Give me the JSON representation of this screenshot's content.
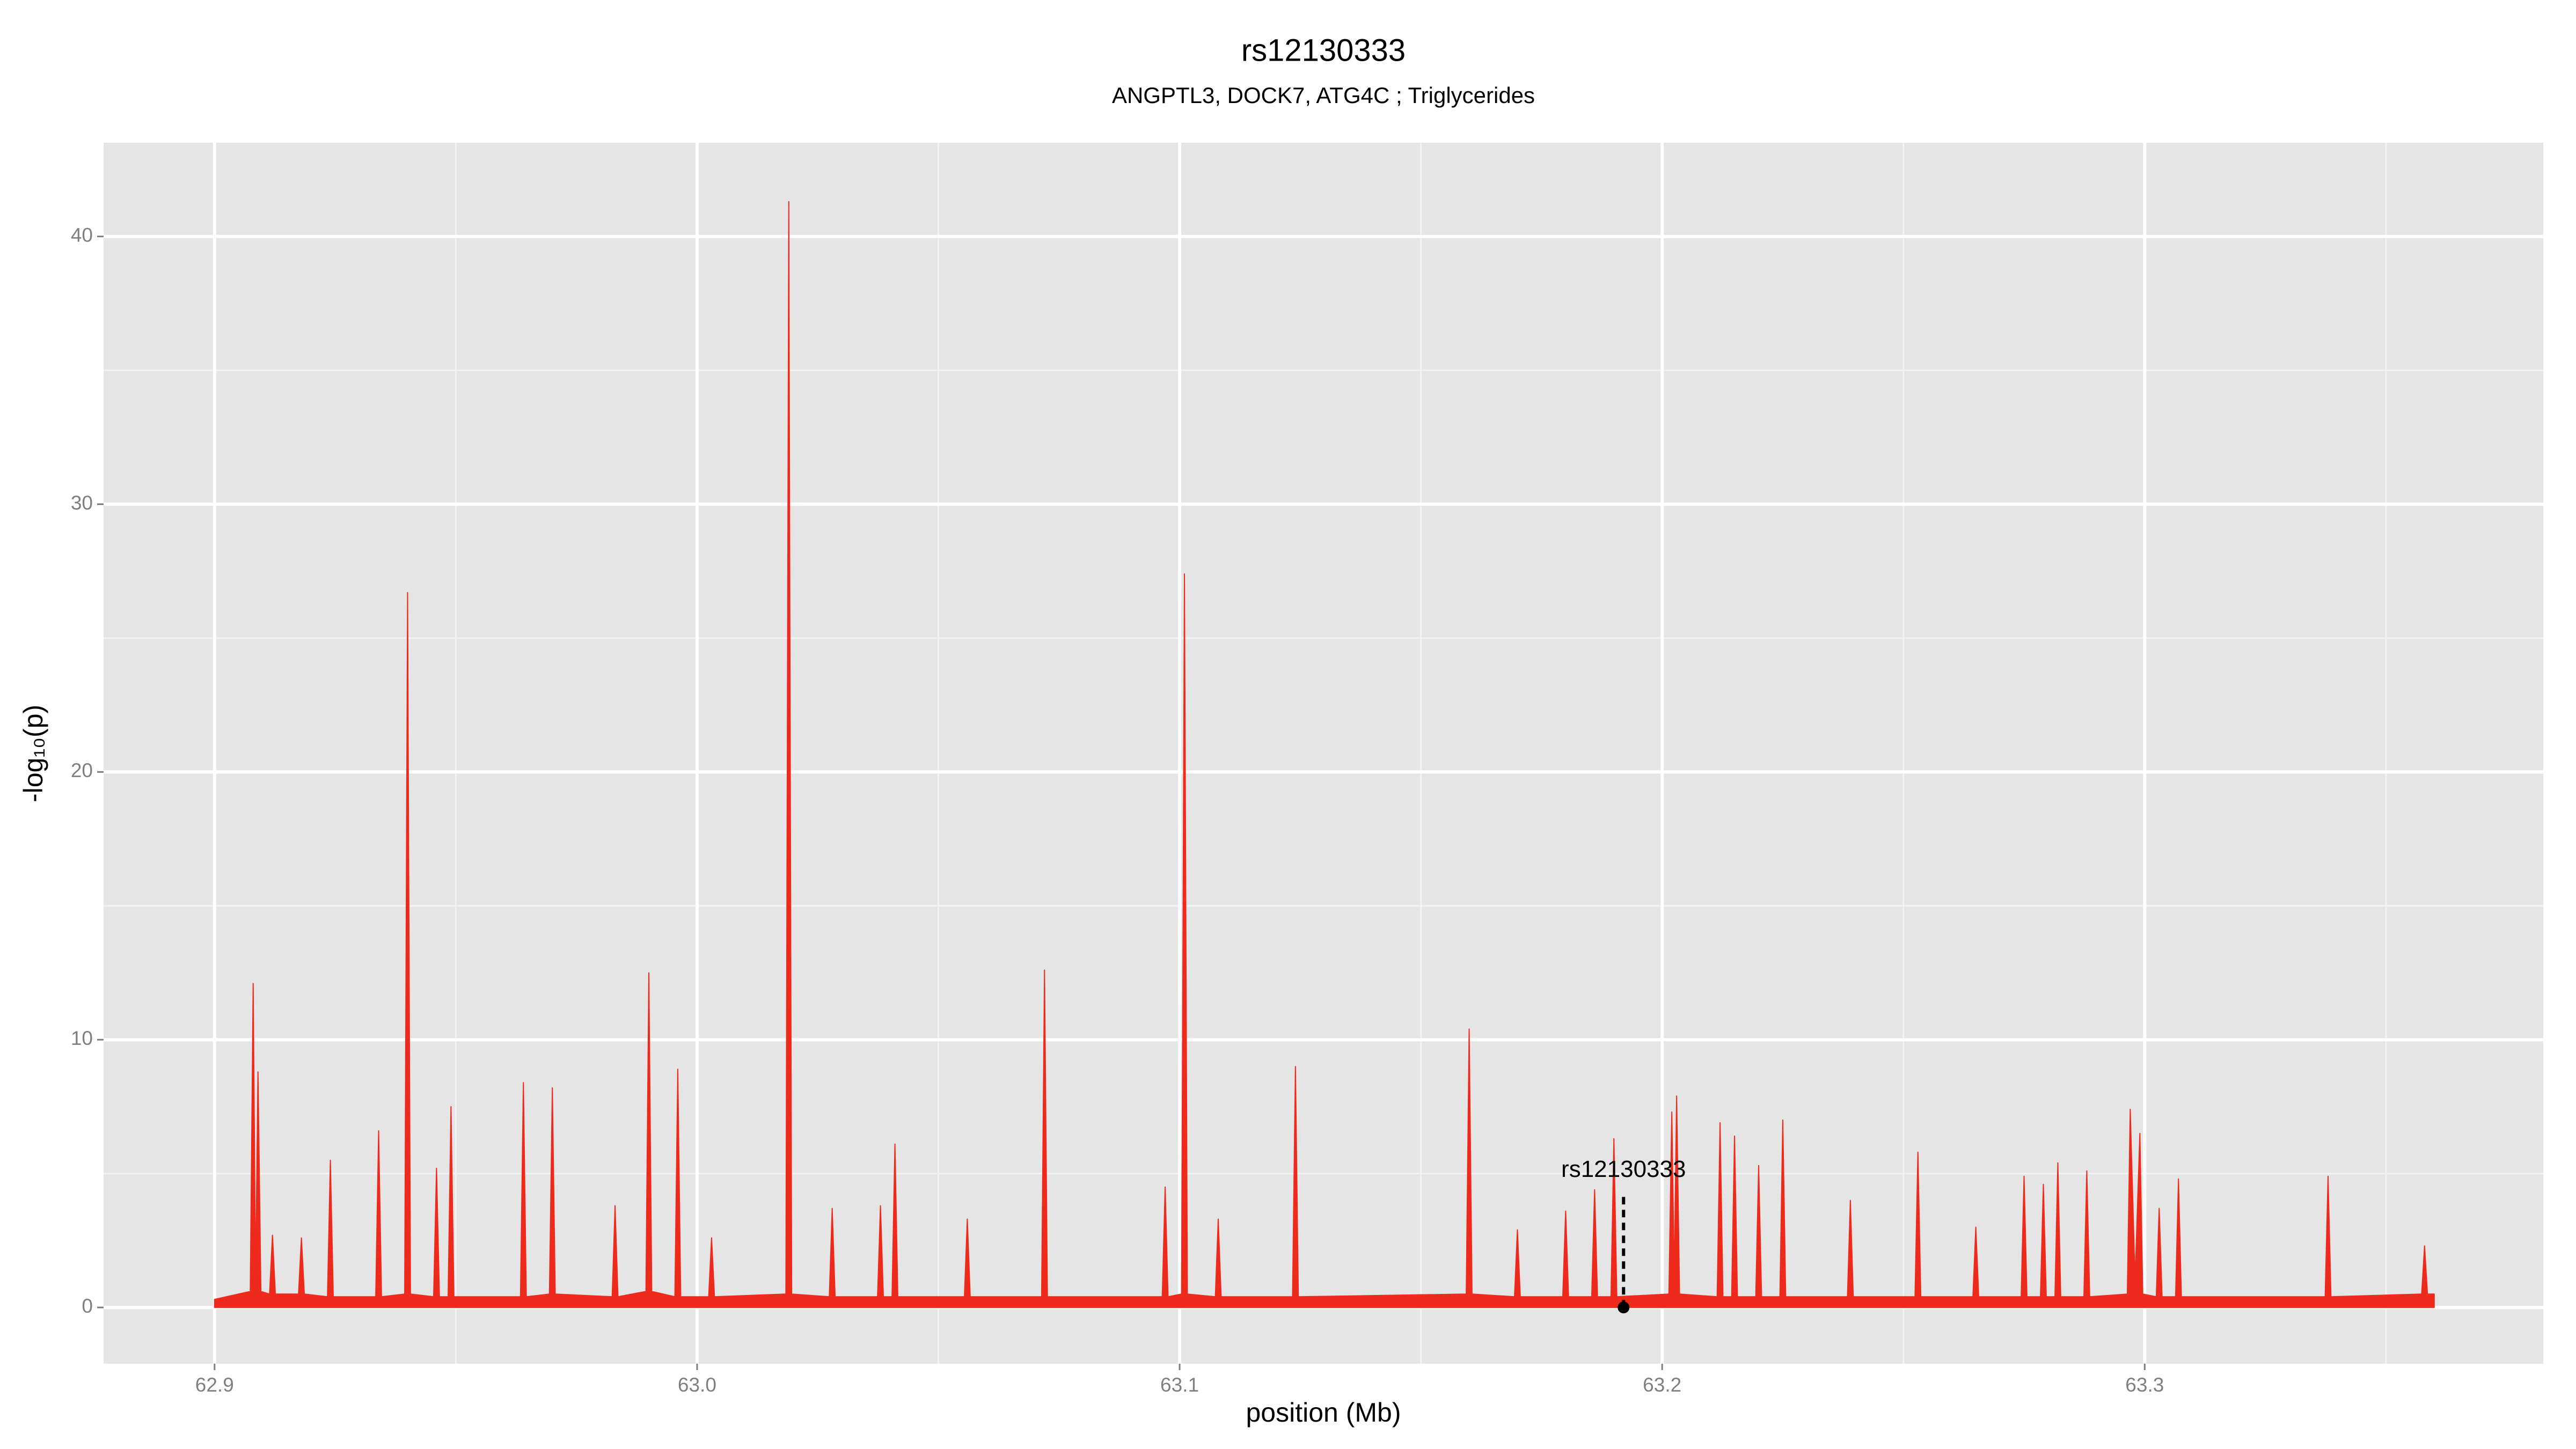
{
  "chart_data": {
    "type": "area",
    "title": "rs12130333",
    "subtitle": "ANGPTL3, DOCK7, ATG4C ; Triglycerides",
    "x_label": "position (Mb)",
    "y_label": "-log₁₀(p)",
    "color": "#ee2a1c",
    "grid": true,
    "xlim": [
      62.877,
      63.3826
    ],
    "ylim": [
      -2.1,
      43.5
    ],
    "xticks": [
      62.9,
      {
        "value": 63,
        "label": "63.0"
      },
      63.1,
      63.2,
      63.3
    ],
    "yticks": [
      0,
      10,
      20,
      30,
      40
    ],
    "x_minor_ticks": [
      62.95,
      63.05,
      63.15,
      63.25,
      63.35
    ],
    "y_minor_ticks": [
      5,
      15,
      25,
      35
    ],
    "annotation": {
      "text": "rs12130333",
      "x": 63.192,
      "y": 0
    },
    "x": [
      62.9,
      62.9074,
      62.908,
      62.9085,
      62.909,
      62.9096,
      62.9114,
      62.912,
      62.9126,
      62.9174,
      62.918,
      62.9186,
      62.9234,
      62.924,
      62.9246,
      62.9334,
      62.934,
      62.9346,
      62.9394,
      62.94,
      62.9406,
      62.9454,
      62.946,
      62.9466,
      62.9484,
      62.949,
      62.9496,
      62.9634,
      62.964,
      62.9646,
      62.9694,
      62.97,
      62.9706,
      62.9824,
      62.983,
      62.9836,
      62.9894,
      62.99,
      62.9906,
      62.9954,
      62.996,
      62.9966,
      63.0024,
      63.003,
      63.0036,
      63.0184,
      63.019,
      63.0196,
      63.0274,
      63.028,
      63.0286,
      63.0374,
      63.038,
      63.0386,
      63.0404,
      63.041,
      63.0416,
      63.0554,
      63.056,
      63.0566,
      63.0714,
      63.072,
      63.0726,
      63.0964,
      63.097,
      63.0976,
      63.1004,
      63.101,
      63.1016,
      63.1074,
      63.108,
      63.1086,
      63.1234,
      63.124,
      63.1246,
      63.1594,
      63.16,
      63.1606,
      63.1694,
      63.17,
      63.1706,
      63.1794,
      63.18,
      63.1806,
      63.1854,
      63.186,
      63.1866,
      63.1894,
      63.19,
      63.1906,
      63.2014,
      63.202,
      63.2025,
      63.203,
      63.2036,
      63.2114,
      63.212,
      63.2126,
      63.2144,
      63.215,
      63.2156,
      63.2194,
      63.22,
      63.2206,
      63.2244,
      63.225,
      63.2256,
      63.2384,
      63.239,
      63.2396,
      63.2524,
      63.253,
      63.2536,
      63.2644,
      63.265,
      63.2656,
      63.2744,
      63.275,
      63.2756,
      63.2784,
      63.279,
      63.2796,
      63.2814,
      63.282,
      63.2826,
      63.2874,
      63.288,
      63.2886,
      63.2964,
      63.297,
      63.298,
      63.299,
      63.2996,
      63.3024,
      63.303,
      63.3036,
      63.3064,
      63.307,
      63.3076,
      63.3374,
      63.338,
      63.3386,
      63.3574,
      63.358,
      63.3586,
      63.36
    ],
    "values": [
      0.3,
      0.6,
      12.1,
      1.0,
      8.8,
      0.6,
      0.5,
      2.7,
      0.5,
      0.5,
      2.6,
      0.5,
      0.4,
      5.5,
      0.4,
      0.4,
      6.6,
      0.4,
      0.5,
      26.7,
      0.5,
      0.4,
      5.2,
      0.4,
      0.4,
      7.5,
      0.4,
      0.4,
      8.4,
      0.4,
      0.5,
      8.2,
      0.5,
      0.4,
      3.8,
      0.4,
      0.6,
      12.5,
      0.6,
      0.4,
      8.9,
      0.4,
      0.4,
      2.6,
      0.4,
      0.5,
      41.3,
      0.5,
      0.4,
      3.7,
      0.4,
      0.4,
      3.8,
      0.4,
      0.4,
      6.1,
      0.4,
      0.4,
      3.3,
      0.4,
      0.4,
      12.6,
      0.4,
      0.4,
      4.5,
      0.4,
      0.5,
      27.4,
      0.5,
      0.4,
      3.3,
      0.4,
      0.4,
      9.0,
      0.4,
      0.5,
      10.4,
      0.5,
      0.4,
      2.9,
      0.4,
      0.4,
      3.6,
      0.4,
      0.4,
      4.4,
      0.4,
      0.4,
      6.3,
      0.4,
      0.5,
      7.3,
      1.0,
      7.9,
      0.5,
      0.4,
      6.9,
      0.4,
      0.4,
      6.4,
      0.4,
      0.4,
      5.3,
      0.4,
      0.4,
      7.0,
      0.4,
      0.4,
      4.0,
      0.4,
      0.4,
      5.8,
      0.4,
      0.4,
      3.0,
      0.4,
      0.4,
      4.9,
      0.4,
      0.4,
      4.6,
      0.4,
      0.4,
      5.4,
      0.4,
      0.4,
      5.1,
      0.4,
      0.5,
      7.4,
      1.0,
      6.5,
      0.5,
      0.4,
      3.7,
      0.4,
      0.4,
      4.8,
      0.4,
      0.4,
      4.9,
      0.4,
      0.5,
      2.3,
      0.5,
      0.5
    ]
  }
}
